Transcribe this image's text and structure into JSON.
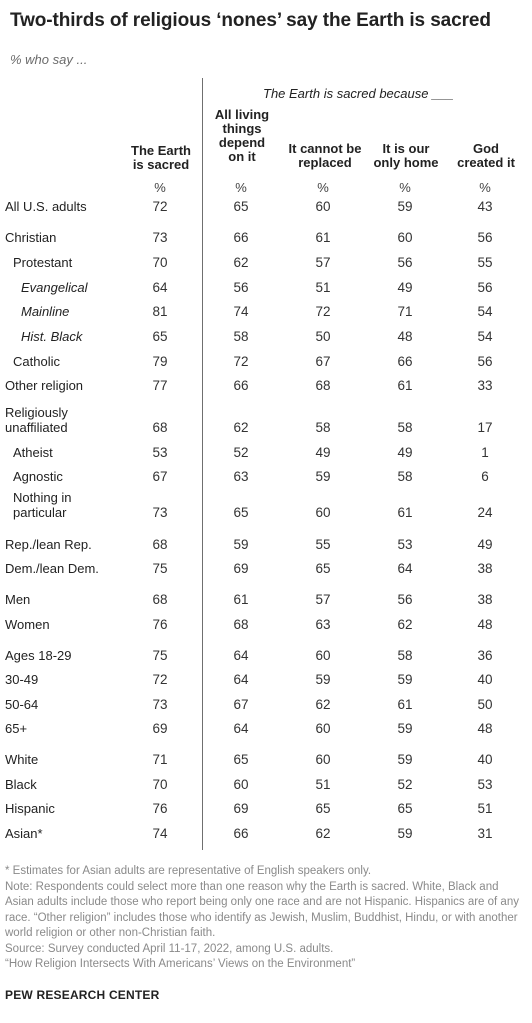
{
  "title": "Two-thirds of religious ‘nones’ say the Earth is sacred",
  "subtitle": "% who say ...",
  "group_header": "The Earth is sacred because ___",
  "columns": [
    {
      "line1": "The Earth",
      "line2": "is sacred",
      "line3": "",
      "line4": ""
    },
    {
      "line1": "All living",
      "line2": "things",
      "line3": "depend",
      "line4": "on it"
    },
    {
      "line1": "It cannot be",
      "line2": "replaced",
      "line3": "",
      "line4": ""
    },
    {
      "line1": "It is our",
      "line2": "only home",
      "line3": "",
      "line4": ""
    },
    {
      "line1": "God",
      "line2": "created it",
      "line3": "",
      "line4": ""
    }
  ],
  "pct_symbol": "%",
  "chart_data": {
    "type": "table",
    "series_names": [
      "The Earth is sacred",
      "All living things depend on it",
      "It cannot be replaced",
      "It is our only home",
      "God created it"
    ],
    "rows": [
      {
        "label": "All U.S. adults",
        "label2": "",
        "values": [
          "72",
          "65",
          "60",
          "59",
          "43"
        ]
      },
      {
        "label": "Christian",
        "label2": "",
        "values": [
          "73",
          "66",
          "61",
          "60",
          "56"
        ]
      },
      {
        "label": "Protestant",
        "label2": "",
        "values": [
          "70",
          "62",
          "57",
          "56",
          "55"
        ]
      },
      {
        "label": "Evangelical",
        "label2": "",
        "values": [
          "64",
          "56",
          "51",
          "49",
          "56"
        ]
      },
      {
        "label": "Mainline",
        "label2": "",
        "values": [
          "81",
          "74",
          "72",
          "71",
          "54"
        ]
      },
      {
        "label": "Hist. Black",
        "label2": "",
        "values": [
          "65",
          "58",
          "50",
          "48",
          "54"
        ]
      },
      {
        "label": "Catholic",
        "label2": "",
        "values": [
          "79",
          "72",
          "67",
          "66",
          "56"
        ]
      },
      {
        "label": "Other religion",
        "label2": "",
        "values": [
          "77",
          "66",
          "68",
          "61",
          "33"
        ]
      },
      {
        "label": "Religiously",
        "label2": "unaffiliated",
        "values": [
          "68",
          "62",
          "58",
          "58",
          "17"
        ]
      },
      {
        "label": "Atheist",
        "label2": "",
        "values": [
          "53",
          "52",
          "49",
          "49",
          "1"
        ]
      },
      {
        "label": "Agnostic",
        "label2": "",
        "values": [
          "67",
          "63",
          "59",
          "58",
          "6"
        ]
      },
      {
        "label": "Nothing in",
        "label2": "particular",
        "values": [
          "73",
          "65",
          "60",
          "61",
          "24"
        ]
      },
      {
        "label": "Rep./lean Rep.",
        "label2": "",
        "values": [
          "68",
          "59",
          "55",
          "53",
          "49"
        ]
      },
      {
        "label": "Dem./lean Dem.",
        "label2": "",
        "values": [
          "75",
          "69",
          "65",
          "64",
          "38"
        ]
      },
      {
        "label": "Men",
        "label2": "",
        "values": [
          "68",
          "61",
          "57",
          "56",
          "38"
        ]
      },
      {
        "label": "Women",
        "label2": "",
        "values": [
          "76",
          "68",
          "63",
          "62",
          "48"
        ]
      },
      {
        "label": "Ages 18-29",
        "label2": "",
        "values": [
          "75",
          "64",
          "60",
          "58",
          "36"
        ]
      },
      {
        "label": "30-49",
        "label2": "",
        "values": [
          "72",
          "64",
          "59",
          "59",
          "40"
        ]
      },
      {
        "label": "50-64",
        "label2": "",
        "values": [
          "73",
          "67",
          "62",
          "61",
          "50"
        ]
      },
      {
        "label": "65+",
        "label2": "",
        "values": [
          "69",
          "64",
          "60",
          "59",
          "48"
        ]
      },
      {
        "label": "White",
        "label2": "",
        "values": [
          "71",
          "65",
          "60",
          "59",
          "40"
        ]
      },
      {
        "label": "Black",
        "label2": "",
        "values": [
          "70",
          "60",
          "51",
          "52",
          "53"
        ]
      },
      {
        "label": "Hispanic",
        "label2": "",
        "values": [
          "76",
          "69",
          "65",
          "65",
          "51"
        ]
      },
      {
        "label": "Asian*",
        "label2": "",
        "values": [
          "74",
          "66",
          "62",
          "59",
          "31"
        ]
      }
    ]
  },
  "footnotes": [
    "* Estimates for Asian adults are representative of English speakers only.",
    "Note: Respondents could select more than one reason why the Earth is sacred. White, Black and Asian adults include those who report being only one race and are not Hispanic. Hispanics are of any race. “Other religion” includes those who identify as Jewish, Muslim, Buddhist, Hindu, or with another world religion or other non-Christian faith.",
    "Source: Survey conducted April 11-17, 2022, among U.S. adults.",
    "“How Religion Intersects With Americans’ Views on the Environment”"
  ],
  "brand": "PEW RESEARCH CENTER"
}
